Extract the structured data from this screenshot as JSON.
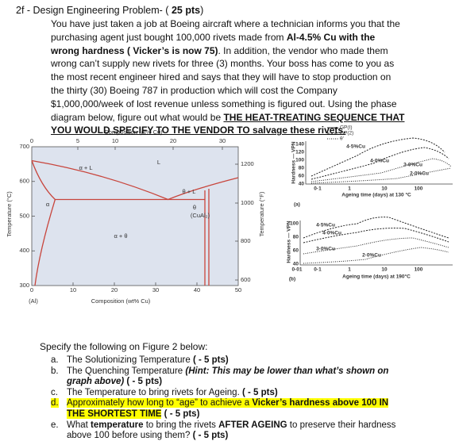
{
  "heading": [
    {
      "text": "2f - Design Engineering Problem- ( ",
      "style": ""
    },
    {
      "text": "25 pts",
      "style": "bold"
    },
    {
      "text": ")",
      "style": ""
    }
  ],
  "paragraph": [
    {
      "text": "You have just taken a job at Boeing aircraft where a technician informs you that the purchasing agent just bought 100,000 rivets made from ",
      "style": ""
    },
    {
      "text": "Al-4.5% Cu",
      "style": "bold"
    },
    {
      "text": " with the wrong hardness ( Vicker’s is now 75)",
      "style": "bold"
    },
    {
      "text": ". In addition, the vendor who made them wrong can’t supply new rivets for three (3) months. Your boss has come to you as the most recent engineer hired and says that they will have to stop production on the thirty (30) Boeing 787 in production which will cost the Company $1,000,000/week of lost revenue unless something is figured out. Using the phase diagram below, figure out what would be ",
      "style": ""
    },
    {
      "text": "THE HEAT-TREATING SEQUENCE THAT YOU WOULD SPECIFY TO THE VENDOR TO salvage these rivets.",
      "style": "bold underline"
    }
  ],
  "phase_diagram": {
    "top_axis_title": "Composition (at% Cu)",
    "top_ticks": [
      "0",
      "5",
      "10",
      "20",
      "30"
    ],
    "bottom_axis_title": "Composition (wt% Cu)",
    "bottom_ticks": [
      "0",
      "10",
      "20",
      "30",
      "40",
      "50"
    ],
    "origin_label": "(Al)",
    "left_axis_title": "Temperature (°C)",
    "left_ticks": [
      "700",
      "600",
      "500",
      "400",
      "300"
    ],
    "right_axis_title": "Temperature (°F)",
    "right_ticks": [
      "1200",
      "1000",
      "800",
      "600"
    ],
    "regions": [
      "α",
      "α + L",
      "L",
      "θ + L",
      "θ",
      "(CuAl₂)",
      "α + θ"
    ]
  },
  "ageing_a": {
    "y_axis_title": "Hardness — VPN",
    "y_ticks": [
      "140",
      "120",
      "100",
      "80",
      "60",
      "40"
    ],
    "x_ticks": [
      "0·1",
      "1",
      "10",
      "100"
    ],
    "x_axis_title": "Ageing time (days) at 130 °C",
    "legend": [
      "GP(I)",
      "GP(2)",
      "θ'"
    ],
    "curve_labels": [
      "4·5%Cu",
      "4·0%Cu",
      "3·0%Cu",
      "2·0%Cu"
    ],
    "panel": "(a)"
  },
  "ageing_b": {
    "y_axis_title": "Hardness — VPN",
    "y_ticks": [
      "100",
      "80",
      "60",
      "40"
    ],
    "x_ticks": [
      "0·01",
      "0·1",
      "1",
      "10",
      "100"
    ],
    "x_axis_title": "Ageing time (days) at 190°C",
    "curve_labels": [
      "4·5%Cu",
      "4·0%Cu",
      "3·0%Cu",
      "2·0%Cu"
    ],
    "panel": "(b)"
  },
  "instruction": "Specify the following on Figure 2 below:",
  "items": [
    {
      "marker": "a.",
      "marker_style": "",
      "runs": [
        {
          "text": "The Solutionizing Temperature ",
          "style": ""
        },
        {
          "text": "( - 5 pts)",
          "style": "bold"
        }
      ]
    },
    {
      "marker": "b.",
      "marker_style": "",
      "runs": [
        {
          "text": "The Quenching Temperature ",
          "style": ""
        },
        {
          "text": "(Hint: This may be lower than what’s shown on graph above)",
          "style": "bold italic"
        },
        {
          "text": " ( - 5 pts)",
          "style": "bold"
        }
      ]
    },
    {
      "marker": "c.",
      "marker_style": "",
      "runs": [
        {
          "text": "The Temperature to bring rivets for Ageing. ",
          "style": ""
        },
        {
          "text": "( - 5 pts)",
          "style": "bold"
        }
      ]
    },
    {
      "marker": "d.",
      "marker_style": "highlight",
      "runs": [
        {
          "text": "Approximately how long to “age” to achieve a ",
          "style": "highlight"
        },
        {
          "text": "Vicker’s hardness above 100 IN THE SHORTEST TIME",
          "style": "bold highlight"
        },
        {
          "text": " ( - 5 pts)",
          "style": "bold"
        }
      ]
    },
    {
      "marker": "e.",
      "marker_style": "",
      "runs": [
        {
          "text": "What ",
          "style": ""
        },
        {
          "text": "temperature",
          "style": "bold"
        },
        {
          "text": " to bring the rivets ",
          "style": ""
        },
        {
          "text": "AFTER AGEING",
          "style": "bold"
        },
        {
          "text": " to preserve their hardness above 100 before using them? ",
          "style": ""
        },
        {
          "text": "( - 5 pts)",
          "style": "bold"
        }
      ]
    }
  ]
}
